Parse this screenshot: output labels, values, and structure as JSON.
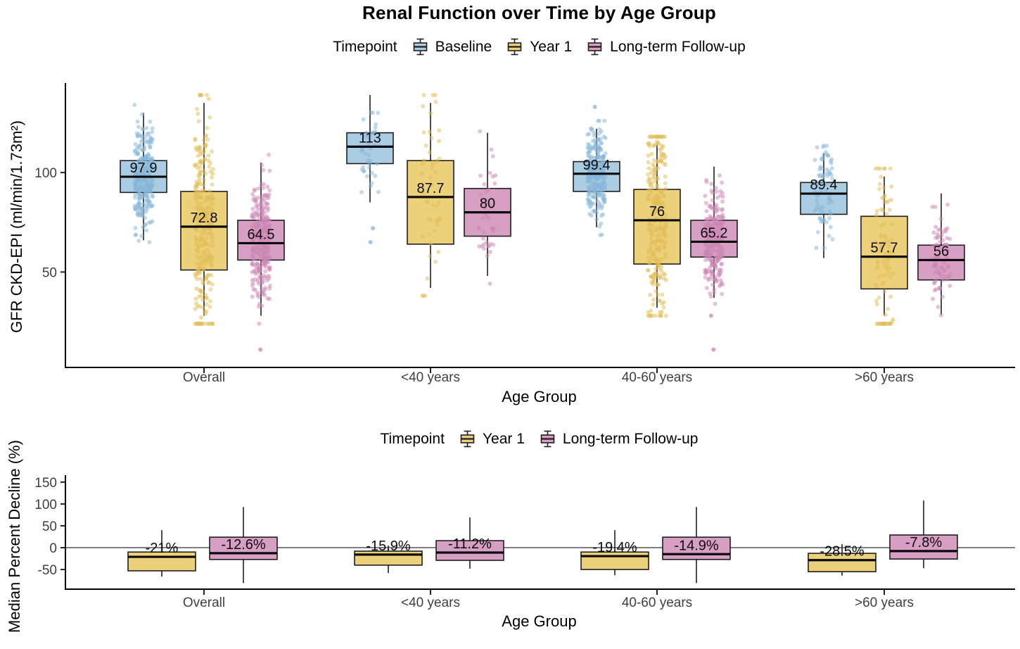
{
  "chart_data": [
    {
      "type": "boxplot",
      "title": "Renal Function over Time by Age Group",
      "legend_title": "Timepoint",
      "legend_position": "top",
      "xlabel": "Age Group",
      "ylabel": "GFR CKD-EPI (ml/min/1.73m²)",
      "ylim": [
        2,
        145
      ],
      "yticks": [
        50,
        100
      ],
      "grid": false,
      "jitter_points": true,
      "series": [
        {
          "name": "Baseline",
          "fill": "#abcde3",
          "point_color": "#86b6d8"
        },
        {
          "name": "Year 1",
          "fill": "#ecd07a",
          "point_color": "#e2bd55"
        },
        {
          "name": "Long-term Follow-up",
          "fill": "#d89fc4",
          "point_color": "#cb86b3"
        }
      ],
      "categories": [
        "Overall",
        "<40 years",
        "40-60 years",
        ">60 years"
      ],
      "groups": [
        {
          "category": "Overall",
          "boxes": [
            {
              "series": "Baseline",
              "whisker_low": 66,
              "q1": 90,
              "median": 97.9,
              "q3": 106,
              "whisker_high": 130,
              "label": "97.9",
              "n_points": 280,
              "outliers": []
            },
            {
              "series": "Year 1",
              "whisker_low": 28,
              "q1": 51,
              "median": 72.8,
              "q3": 90.5,
              "whisker_high": 135,
              "label": "72.8",
              "n_points": 300,
              "outliers": []
            },
            {
              "series": "Long-term Follow-up",
              "whisker_low": 28,
              "q1": 56,
              "median": 64.5,
              "q3": 76,
              "whisker_high": 105,
              "label": "64.5",
              "n_points": 280,
              "outliers": [
                11
              ]
            }
          ]
        },
        {
          "category": "<40 years",
          "boxes": [
            {
              "series": "Baseline",
              "whisker_low": 85,
              "q1": 104.5,
              "median": 113,
              "q3": 120,
              "whisker_high": 139,
              "label": "113",
              "n_points": 38,
              "outliers": [
                72,
                65
              ]
            },
            {
              "series": "Year 1",
              "whisker_low": 42,
              "q1": 64,
              "median": 87.7,
              "q3": 106,
              "whisker_high": 135,
              "label": "87.7",
              "n_points": 48,
              "outliers": []
            },
            {
              "series": "Long-term Follow-up",
              "whisker_low": 48,
              "q1": 68,
              "median": 80,
              "q3": 92,
              "whisker_high": 120,
              "label": "80",
              "n_points": 42,
              "outliers": []
            }
          ]
        },
        {
          "category": "40-60 years",
          "boxes": [
            {
              "series": "Baseline",
              "whisker_low": 72.5,
              "q1": 90.5,
              "median": 99.4,
              "q3": 105.5,
              "whisker_high": 122,
              "label": "99.4",
              "n_points": 260,
              "outliers": [
                133
              ]
            },
            {
              "series": "Year 1",
              "whisker_low": 32,
              "q1": 54,
              "median": 76,
              "q3": 91.5,
              "whisker_high": 114,
              "label": "76",
              "n_points": 280,
              "outliers": []
            },
            {
              "series": "Long-term Follow-up",
              "whisker_low": 37,
              "q1": 57.5,
              "median": 65.2,
              "q3": 76,
              "whisker_high": 103,
              "label": "65.2",
              "n_points": 260,
              "outliers": [
                28,
                11
              ]
            }
          ]
        },
        {
          "category": ">60 years",
          "boxes": [
            {
              "series": "Baseline",
              "whisker_low": 57,
              "q1": 79,
              "median": 89.4,
              "q3": 95,
              "whisker_high": 109.5,
              "label": "89.4",
              "n_points": 78,
              "outliers": []
            },
            {
              "series": "Year 1",
              "whisker_low": 28,
              "q1": 41.5,
              "median": 57.7,
              "q3": 78,
              "whisker_high": 98,
              "label": "57.7",
              "n_points": 95,
              "outliers": []
            },
            {
              "series": "Long-term Follow-up",
              "whisker_low": 28.5,
              "q1": 46,
              "median": 56,
              "q3": 63.5,
              "whisker_high": 89.5,
              "label": "56",
              "n_points": 80,
              "outliers": []
            }
          ]
        }
      ]
    },
    {
      "type": "boxplot",
      "title": "",
      "legend_title": "Timepoint",
      "legend_position": "top",
      "xlabel": "Age Group",
      "ylabel": "Median Percent Decline (%)",
      "ylim": [
        -95,
        166
      ],
      "yticks": [
        -50,
        0,
        50,
        100,
        150
      ],
      "grid": false,
      "zero_line": true,
      "jitter_points": false,
      "series": [
        {
          "name": "Year 1",
          "fill": "#ecd07a",
          "point_color": "#e2bd55"
        },
        {
          "name": "Long-term Follow-up",
          "fill": "#d89fc4",
          "point_color": "#cb86b3"
        }
      ],
      "categories": [
        "Overall",
        "<40 years",
        "40-60 years",
        ">60 years"
      ],
      "groups": [
        {
          "category": "Overall",
          "boxes": [
            {
              "series": "Year 1",
              "whisker_low": -66,
              "q1": -53,
              "median": -21,
              "q3": -10,
              "whisker_high": 40,
              "label": "-21%",
              "n_points": 0,
              "outliers": []
            },
            {
              "series": "Long-term Follow-up",
              "whisker_low": -81,
              "q1": -27,
              "median": -12.6,
              "q3": 24,
              "whisker_high": 93,
              "label": "-12.6%",
              "n_points": 0,
              "outliers": []
            }
          ]
        },
        {
          "category": "<40 years",
          "boxes": [
            {
              "series": "Year 1",
              "whisker_low": -58,
              "q1": -40,
              "median": -15.9,
              "q3": -8,
              "whisker_high": 5,
              "label": "-15.9%",
              "n_points": 0,
              "outliers": []
            },
            {
              "series": "Long-term Follow-up",
              "whisker_low": -48,
              "q1": -29,
              "median": -11.2,
              "q3": 16,
              "whisker_high": 69,
              "label": "-11.2%",
              "n_points": 0,
              "outliers": []
            }
          ]
        },
        {
          "category": "40-60 years",
          "boxes": [
            {
              "series": "Year 1",
              "whisker_low": -63,
              "q1": -50,
              "median": -19.4,
              "q3": -10,
              "whisker_high": 40,
              "label": "-19.4%",
              "n_points": 0,
              "outliers": []
            },
            {
              "series": "Long-term Follow-up",
              "whisker_low": -81,
              "q1": -27,
              "median": -14.9,
              "q3": 24,
              "whisker_high": 93,
              "label": "-14.9%",
              "n_points": 0,
              "outliers": []
            }
          ]
        },
        {
          "category": ">60 years",
          "boxes": [
            {
              "series": "Year 1",
              "whisker_low": -64,
              "q1": -55,
              "median": -28.5,
              "q3": -13,
              "whisker_high": 8,
              "label": "-28.5%",
              "n_points": 0,
              "outliers": []
            },
            {
              "series": "Long-term Follow-up",
              "whisker_low": -47,
              "q1": -26,
              "median": -7.8,
              "q3": 29,
              "whisker_high": 108,
              "label": "-7.8%",
              "n_points": 0,
              "outliers": []
            }
          ]
        }
      ]
    }
  ]
}
